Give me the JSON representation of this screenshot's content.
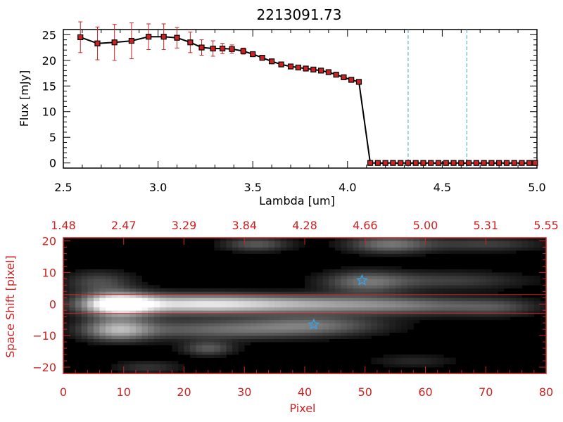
{
  "title": "2213091.73",
  "colors": {
    "axis_top": "#000000",
    "axis_bottom": "#cc2222",
    "errorbar": "#cc2222",
    "marker": "#cc2222",
    "line": "#000000",
    "vline": "#3aa0e0",
    "star": "#3aa0e0",
    "image_bg": "#000000"
  },
  "chart_data": [
    {
      "type": "line",
      "name": "spectrum",
      "title": "2213091.73",
      "xlabel": "Lambda [um]",
      "ylabel": "Flux [mJy]",
      "xlim": [
        2.5,
        5.0
      ],
      "ylim": [
        -1,
        26
      ],
      "xticks": [
        2.5,
        3.0,
        3.5,
        4.0,
        4.5,
        5.0
      ],
      "xtick_labels": [
        "2.5",
        "3.0",
        "3.5",
        "4.0",
        "4.5",
        "5.0"
      ],
      "yticks": [
        0,
        5,
        10,
        15,
        20,
        25
      ],
      "ytick_labels": [
        "0",
        "5",
        "10",
        "15",
        "20",
        "25"
      ],
      "x": [
        2.59,
        2.68,
        2.77,
        2.86,
        2.95,
        3.03,
        3.1,
        3.17,
        3.23,
        3.29,
        3.34,
        3.39,
        3.45,
        3.5,
        3.55,
        3.6,
        3.65,
        3.7,
        3.74,
        3.78,
        3.82,
        3.86,
        3.9,
        3.94,
        3.98,
        4.02,
        4.06,
        4.12,
        4.16,
        4.2,
        4.24,
        4.28,
        4.32,
        4.36,
        4.4,
        4.44,
        4.48,
        4.52,
        4.56,
        4.6,
        4.64,
        4.68,
        4.72,
        4.76,
        4.8,
        4.84,
        4.88,
        4.92,
        4.96,
        4.99
      ],
      "y": [
        24.5,
        23.3,
        23.5,
        23.8,
        24.6,
        24.6,
        24.4,
        23.5,
        22.5,
        22.3,
        22.3,
        22.2,
        21.8,
        21.2,
        20.5,
        19.8,
        19.2,
        18.8,
        18.6,
        18.4,
        18.2,
        18.0,
        17.7,
        17.2,
        16.7,
        16.2,
        15.8,
        0,
        0,
        0,
        0,
        0,
        0,
        0,
        0,
        0,
        0,
        0,
        0,
        0,
        0,
        0,
        0,
        0,
        0,
        0,
        0,
        0,
        0,
        0
      ],
      "yerr": [
        3.0,
        3.2,
        3.5,
        3.5,
        2.5,
        2.5,
        2.0,
        2.0,
        1.5,
        1.5,
        1.0,
        0.8,
        0.6,
        0.5,
        0.5,
        0.4,
        0.4,
        0.4,
        0.4,
        0.4,
        0.4,
        0.4,
        0.4,
        0.4,
        0.4,
        0.4,
        0.4,
        0,
        0,
        0,
        0,
        0,
        0,
        0,
        0,
        0,
        0,
        0,
        0,
        0,
        0,
        0,
        0,
        0,
        0,
        0,
        0,
        0,
        0,
        0
      ],
      "vlines": [
        4.32,
        4.63
      ]
    },
    {
      "type": "heatmap",
      "name": "2d-spectrum-image",
      "xlabel": "Pixel",
      "ylabel": "Space Shift [pixel]",
      "xlim": [
        0,
        80
      ],
      "ylim": [
        -22,
        21
      ],
      "xticks": [
        0,
        10,
        20,
        30,
        40,
        50,
        60,
        70,
        80
      ],
      "xtick_labels": [
        "0",
        "10",
        "20",
        "30",
        "40",
        "50",
        "60",
        "70",
        "80"
      ],
      "yticks": [
        -20,
        -10,
        0,
        10,
        20
      ],
      "ytick_labels": [
        "−20",
        "−10",
        "0",
        "10",
        "20"
      ],
      "top_axis_labels": [
        "1.48",
        "2.47",
        "3.29",
        "3.84",
        "4.28",
        "4.66",
        "5.00",
        "5.31",
        "5.55"
      ],
      "extraction_lines": [
        3,
        -3
      ],
      "stars": [
        {
          "x": 49.5,
          "y": 7.5
        },
        {
          "x": 41.5,
          "y": -6.5
        }
      ]
    }
  ]
}
